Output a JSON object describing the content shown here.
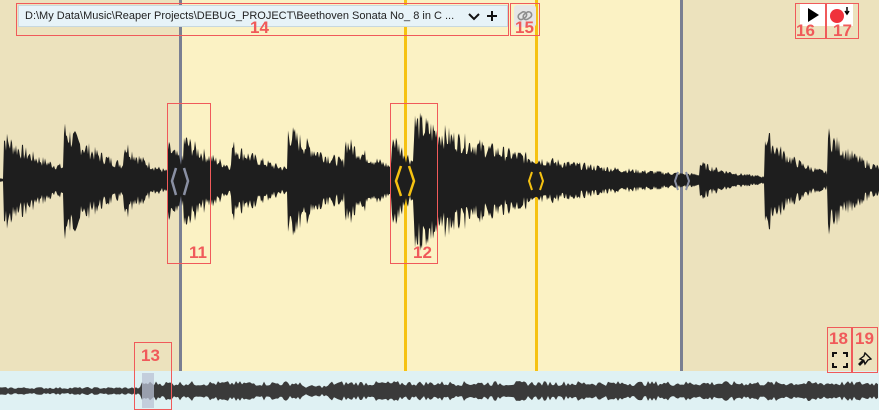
{
  "path_bar": {
    "text": "D:\\My Data\\Music\\Reaper Projects\\DEBUG_PROJECT\\Beethoven Sonata No_ 8 in C ...",
    "dropdown_icon": "chevron-down-icon",
    "add_icon": "plus-icon"
  },
  "toolbar": {
    "link_icon": "link-icon",
    "play_icon": "play-icon",
    "record_icon": "record-arm-icon",
    "fullscreen_icon": "fullscreen-icon",
    "pin_icon": "pin-icon"
  },
  "colors": {
    "outside_region": "#ece2bd",
    "selected_region": "#fbf2c4",
    "waveform": "#1e1e1e",
    "gray_marker": "#7a7f92",
    "gold_marker": "#f6c211",
    "overview_bg": "#dff1f3",
    "annotation": "#f05a5a"
  },
  "annotations": {
    "a11": "11",
    "a12": "12",
    "a13": "13",
    "a14": "14",
    "a15": "15",
    "a16": "16",
    "a17": "17",
    "a18": "18",
    "a19": "19"
  }
}
